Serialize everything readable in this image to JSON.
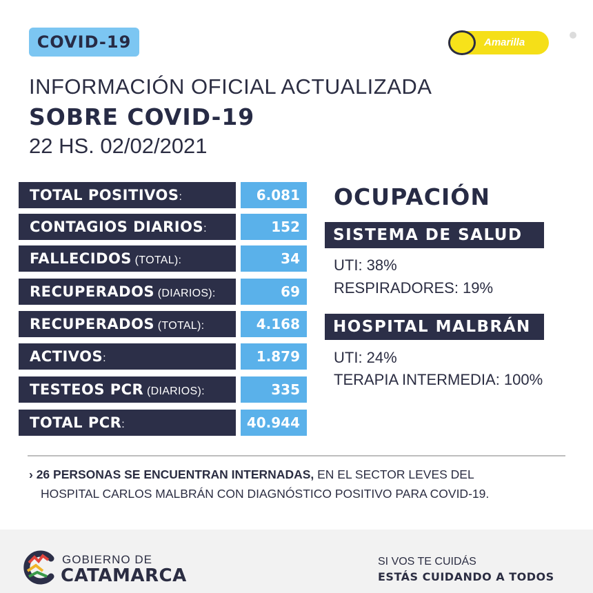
{
  "header": {
    "badge": "COVID-19",
    "status_label": "Amarilla",
    "title_line1": "INFORMACIÓN OFICIAL ACTUALIZADA",
    "title_line2": "SOBRE COVID-19",
    "title_line3": "22 HS. 02/02/2021"
  },
  "stats": [
    {
      "label": "TOTAL POSITIVOS",
      "suffix": ":",
      "value": "6.081"
    },
    {
      "label": "CONTAGIOS DIARIOS",
      "suffix": ":",
      "value": "152"
    },
    {
      "label": "FALLECIDOS",
      "suffix": " (TOTAL):",
      "value": "34"
    },
    {
      "label": "RECUPERADOS",
      "suffix": " (DIARIOS):",
      "value": "69"
    },
    {
      "label": "RECUPERADOS",
      "suffix": " (TOTAL):",
      "value": "4.168"
    },
    {
      "label": "ACTIVOS",
      "suffix": ":",
      "value": "1.879"
    },
    {
      "label": "TESTEOS PCR",
      "suffix": " (DIARIOS):",
      "value": "335"
    },
    {
      "label": "TOTAL PCR",
      "suffix": ":",
      "value": "40.944"
    }
  ],
  "ocupacion": {
    "title": "OCUPACIÓN",
    "sistema": {
      "title": "SISTEMA DE SALUD",
      "line1": "UTI: 38%",
      "line2": "RESPIRADORES: 19%"
    },
    "hospital": {
      "title": "HOSPITAL MALBRÁN",
      "line1": "UTI: 24%",
      "line2": "TERAPIA INTERMEDIA: 100%"
    }
  },
  "note": {
    "arrow": "›",
    "bold": "26 PERSONAS SE ENCUENTRAN INTERNADAS,",
    "rest": " EN EL SECTOR LEVES DEL",
    "line2": "HOSPITAL CARLOS MALBRÁN CON DIAGNÓSTICO POSITIVO PARA COVID-19."
  },
  "footer": {
    "gov_top": "GOBIERNO DE",
    "gov_bottom": "CATAMARCA",
    "slogan1": "SI VOS TE CUIDÁS",
    "slogan2": "ESTÁS CUIDANDO A TODOS"
  },
  "colors": {
    "navy": "#2c2f48",
    "sky_blue": "#5ab1ea",
    "badge_blue": "#7cc6f2",
    "status_yellow": "#f5df18"
  }
}
